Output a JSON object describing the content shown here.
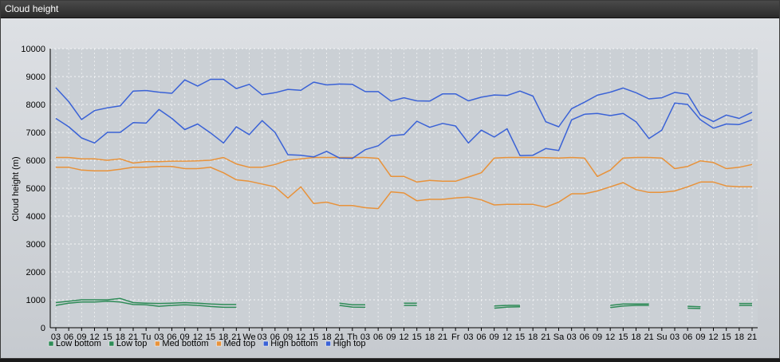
{
  "window": {
    "title": "Cloud height"
  },
  "colors": {
    "low": "#2e8b57",
    "med": "#e8923a",
    "high": "#3a62d6"
  },
  "chart_data": {
    "type": "line",
    "title": "",
    "xlabel": "",
    "ylabel": "Cloud height (m)",
    "ylim": [
      0,
      10000
    ],
    "yticks": [
      0,
      1000,
      2000,
      3000,
      4000,
      5000,
      6000,
      7000,
      8000,
      9000,
      10000
    ],
    "grid": true,
    "legend_position": "bottom-left",
    "x": [
      "03",
      "06",
      "09",
      "12",
      "15",
      "18",
      "21",
      "Tu",
      "03",
      "06",
      "09",
      "12",
      "15",
      "18",
      "21",
      "We",
      "03",
      "06",
      "09",
      "12",
      "15",
      "18",
      "21",
      "Th",
      "03",
      "06",
      "09",
      "12",
      "15",
      "18",
      "21",
      "Fr",
      "03",
      "06",
      "09",
      "12",
      "15",
      "18",
      "21",
      "Sa",
      "03",
      "06",
      "09",
      "12",
      "15",
      "18",
      "21",
      "Su",
      "03",
      "06",
      "09",
      "12",
      "15",
      "18",
      "21"
    ],
    "series": [
      {
        "name": "Low bottom",
        "color": "#2e8b57",
        "values": [
          800,
          880,
          920,
          920,
          950,
          920,
          830,
          820,
          770,
          800,
          820,
          800,
          760,
          730,
          730,
          null,
          null,
          null,
          null,
          null,
          null,
          null,
          800,
          740,
          730,
          null,
          null,
          800,
          800,
          null,
          null,
          null,
          null,
          null,
          700,
          740,
          750,
          null,
          null,
          null,
          null,
          null,
          null,
          720,
          780,
          800,
          800,
          null,
          null,
          700,
          690,
          null,
          null,
          800,
          800
        ]
      },
      {
        "name": "Low top",
        "color": "#2e8b57",
        "values": [
          900,
          950,
          1000,
          1000,
          1000,
          1050,
          900,
          880,
          870,
          880,
          900,
          880,
          850,
          830,
          830,
          null,
          null,
          null,
          null,
          null,
          null,
          null,
          880,
          820,
          820,
          null,
          null,
          880,
          880,
          null,
          null,
          null,
          null,
          null,
          780,
          800,
          800,
          null,
          null,
          null,
          null,
          null,
          null,
          800,
          850,
          850,
          850,
          null,
          null,
          770,
          750,
          null,
          null,
          870,
          870
        ]
      },
      {
        "name": "Med bottom",
        "color": "#e8923a",
        "values": [
          5750,
          5750,
          5650,
          5620,
          5620,
          5680,
          5750,
          5750,
          5780,
          5780,
          5700,
          5700,
          5750,
          5550,
          5300,
          5250,
          5150,
          5050,
          4650,
          5050,
          4450,
          4500,
          4380,
          4380,
          4300,
          4270,
          4870,
          4830,
          4550,
          4600,
          4600,
          4650,
          4680,
          4580,
          4400,
          4420,
          4420,
          4420,
          4320,
          4500,
          4800,
          4800,
          4900,
          5050,
          5200,
          4950,
          4850,
          4850,
          4900,
          5050,
          5220,
          5220,
          5080,
          5050,
          5050
        ]
      },
      {
        "name": "Med top",
        "color": "#e8923a",
        "values": [
          6100,
          6100,
          6050,
          6050,
          6000,
          6050,
          5900,
          5950,
          5950,
          5970,
          5970,
          5980,
          6000,
          6100,
          5870,
          5750,
          5750,
          5850,
          6000,
          6050,
          6100,
          6100,
          6100,
          6100,
          6100,
          6070,
          5420,
          5420,
          5220,
          5280,
          5250,
          5250,
          5400,
          5550,
          6080,
          6100,
          6100,
          6100,
          6090,
          6080,
          6100,
          6080,
          5420,
          5650,
          6080,
          6100,
          6100,
          6080,
          5700,
          5780,
          5980,
          5920,
          5700,
          5750,
          5850
        ]
      },
      {
        "name": "High bottom",
        "color": "#3a62d6",
        "values": [
          7500,
          7200,
          6800,
          6620,
          7000,
          7000,
          7350,
          7330,
          7820,
          7500,
          7100,
          7300,
          6980,
          6620,
          7200,
          6920,
          7420,
          7000,
          6200,
          6180,
          6120,
          6320,
          6080,
          6070,
          6380,
          6520,
          6880,
          6920,
          7400,
          7180,
          7320,
          7230,
          6620,
          7080,
          6830,
          7130,
          6170,
          6180,
          6420,
          6350,
          7450,
          7650,
          7680,
          7600,
          7680,
          7380,
          6780,
          7080,
          8050,
          8000,
          7450,
          7150,
          7300,
          7280,
          7450
        ]
      },
      {
        "name": "High top",
        "color": "#3a62d6",
        "values": [
          8600,
          8100,
          7460,
          7780,
          7880,
          7950,
          8480,
          8500,
          8440,
          8400,
          8880,
          8660,
          8900,
          8900,
          8570,
          8720,
          8350,
          8420,
          8540,
          8510,
          8800,
          8700,
          8730,
          8720,
          8460,
          8460,
          8120,
          8240,
          8130,
          8120,
          8380,
          8380,
          8130,
          8260,
          8340,
          8320,
          8480,
          8300,
          7380,
          7200,
          7850,
          8080,
          8330,
          8440,
          8590,
          8420,
          8200,
          8240,
          8430,
          8370,
          7620,
          7390,
          7620,
          7500,
          7720
        ]
      }
    ]
  }
}
